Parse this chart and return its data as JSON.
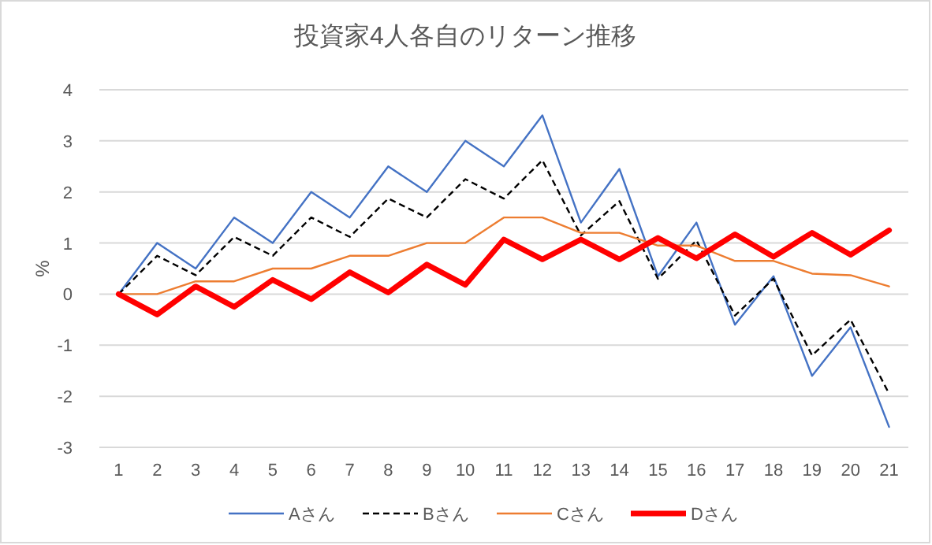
{
  "chart_data": {
    "type": "line",
    "title": "投資家4人各自のリターン推移",
    "ylabel": "%",
    "categories": [
      "1",
      "2",
      "3",
      "4",
      "5",
      "6",
      "7",
      "8",
      "9",
      "10",
      "11",
      "12",
      "13",
      "14",
      "15",
      "16",
      "17",
      "18",
      "19",
      "20",
      "21"
    ],
    "ylim": [
      -3,
      4
    ],
    "yticks": [
      -3,
      -2,
      -1,
      0,
      1,
      2,
      3,
      4
    ],
    "grid": "y",
    "legend": "bottom",
    "marker": "none",
    "series": [
      {
        "name": "Aさん",
        "color": "#4472c4",
        "line_style": "solid",
        "values": [
          0,
          1,
          0.5,
          1.5,
          1,
          2,
          1.5,
          2.5,
          2,
          3,
          2.5,
          3.5,
          1.4,
          2.45,
          0.35,
          1.4,
          -0.6,
          0.35,
          -1.6,
          -0.65,
          -2.6
        ]
      },
      {
        "name": "Bさん",
        "color": "#000000",
        "line_style": "dashed",
        "values": [
          0,
          0.75,
          0.37,
          1.12,
          0.75,
          1.5,
          1.12,
          1.87,
          1.5,
          2.25,
          1.87,
          2.62,
          1.15,
          1.82,
          0.3,
          1.05,
          -0.42,
          0.3,
          -1.2,
          -0.5,
          -1.95
        ]
      },
      {
        "name": "Cさん",
        "color": "#ed7d31",
        "line_style": "solid",
        "values": [
          0,
          0,
          0.25,
          0.25,
          0.5,
          0.5,
          0.75,
          0.75,
          1,
          1,
          1.5,
          1.5,
          1.2,
          1.2,
          0.95,
          0.95,
          0.65,
          0.65,
          0.4,
          0.37,
          0.15
        ]
      },
      {
        "name": "Dさん",
        "color": "#ff0000",
        "line_style": "solid",
        "values": [
          0,
          -0.4,
          0.15,
          -0.25,
          0.28,
          -0.1,
          0.43,
          0.03,
          0.58,
          0.18,
          1.07,
          0.68,
          1.07,
          0.68,
          1.1,
          0.7,
          1.17,
          0.73,
          1.2,
          0.77,
          1.25
        ]
      }
    ]
  }
}
